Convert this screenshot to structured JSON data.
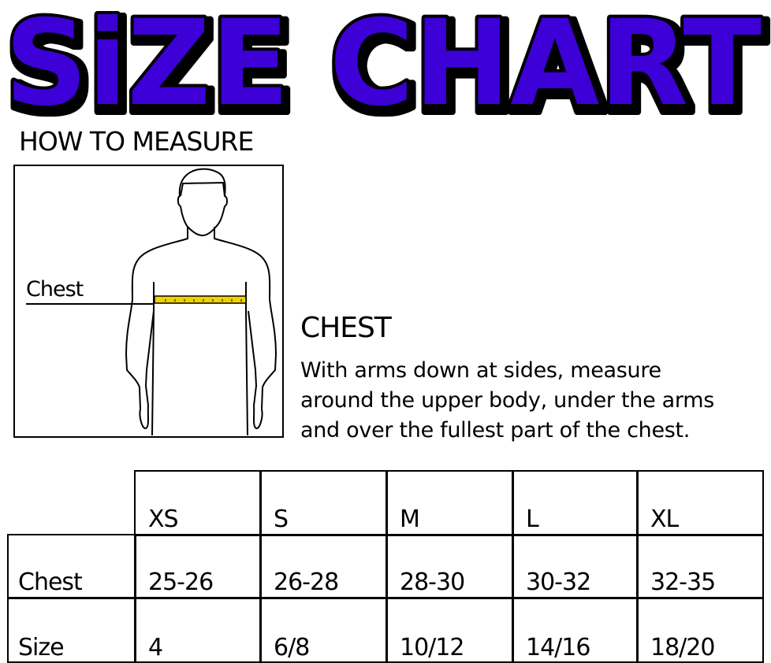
{
  "title": "SiZE CHART",
  "colors": {
    "title_fill": "#3d00d6",
    "title_outline": "#000000",
    "tape": "#f2d000"
  },
  "how_to_measure": "HOW TO MEASURE",
  "figure": {
    "label": "Chest"
  },
  "chest_section": {
    "heading": "CHEST",
    "lines": [
      "With arms down at sides, measure",
      "around the upper body, under the arms",
      "and over the fullest part of the chest."
    ]
  },
  "table": {
    "columns": [
      "XS",
      "S",
      "M",
      "L",
      "XL"
    ],
    "rows": [
      {
        "label": "Chest",
        "values": [
          "25-26",
          "26-28",
          "28-30",
          "30-32",
          "32-35"
        ]
      },
      {
        "label": "Size",
        "values": [
          "4",
          "6/8",
          "10/12",
          "14/16",
          "18/20"
        ]
      }
    ]
  }
}
